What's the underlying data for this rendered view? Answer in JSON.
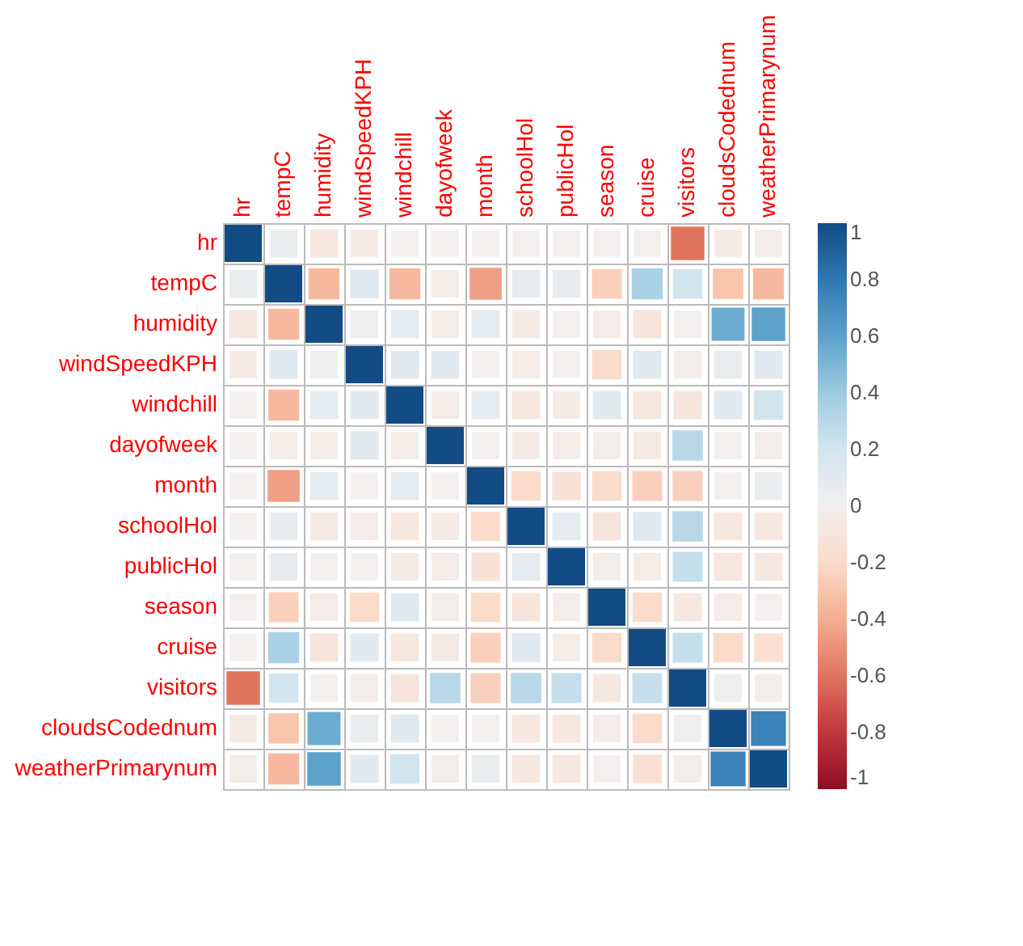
{
  "chart_data": {
    "type": "heatmap",
    "categories": [
      "hr",
      "tempC",
      "humidity",
      "windSpeedKPH",
      "windchill",
      "dayofweek",
      "month",
      "schoolHol",
      "publicHol",
      "season",
      "cruise",
      "visitors",
      "cloudsCodednum",
      "weatherPrimarynum"
    ],
    "y_categories": [
      "hr",
      "tempC",
      "humidity",
      "windSpeedKPH",
      "windchill",
      "dayofweek",
      "month",
      "schoolHol",
      "publicHol",
      "season",
      "cruise",
      "visitors",
      "cloudsCodednum",
      "weatherPrimarynum"
    ],
    "cells": [
      [
        1,
        0.05,
        -0.08,
        -0.04,
        0,
        0,
        0,
        0,
        0,
        0,
        0,
        -0.6,
        -0.04,
        -0.02
      ],
      [
        0.05,
        1,
        -0.35,
        0.12,
        -0.35,
        -0.02,
        -0.45,
        0.06,
        0.06,
        -0.25,
        0.35,
        0.2,
        -0.3,
        -0.35
      ],
      [
        -0.08,
        -0.35,
        1,
        0.02,
        0.08,
        -0.02,
        0.08,
        -0.05,
        0,
        -0.03,
        -0.1,
        0,
        0.55,
        0.6
      ],
      [
        -0.04,
        0.12,
        0.02,
        1,
        0.1,
        0.1,
        0,
        -0.03,
        0,
        -0.2,
        0.1,
        -0.02,
        0.05,
        0.1
      ],
      [
        0,
        -0.35,
        0.08,
        0.1,
        1,
        -0.03,
        0.08,
        -0.08,
        -0.04,
        0.1,
        -0.08,
        -0.1,
        0.1,
        0.2
      ],
      [
        0,
        -0.02,
        -0.02,
        0.1,
        -0.03,
        1,
        0,
        -0.04,
        -0.03,
        -0.02,
        -0.05,
        0.3,
        0,
        -0.02
      ],
      [
        0,
        -0.45,
        0.08,
        0,
        0.08,
        0,
        1,
        -0.2,
        -0.12,
        -0.2,
        -0.25,
        -0.25,
        0,
        0.05
      ],
      [
        0,
        0.06,
        -0.05,
        -0.03,
        -0.08,
        -0.04,
        -0.2,
        1,
        0.08,
        -0.1,
        0.12,
        0.3,
        -0.08,
        -0.08
      ],
      [
        0,
        0.06,
        0,
        0,
        -0.04,
        -0.03,
        -0.12,
        0.08,
        1,
        -0.02,
        -0.02,
        0.25,
        -0.08,
        -0.08
      ],
      [
        0,
        -0.25,
        -0.03,
        -0.2,
        0.1,
        -0.02,
        -0.2,
        -0.1,
        -0.02,
        1,
        -0.2,
        -0.08,
        -0.03,
        0
      ],
      [
        0,
        0.35,
        -0.1,
        0.1,
        -0.08,
        -0.05,
        -0.25,
        0.12,
        -0.02,
        -0.2,
        1,
        0.25,
        -0.2,
        -0.15
      ],
      [
        -0.6,
        0.2,
        0,
        -0.02,
        -0.1,
        0.3,
        -0.25,
        0.3,
        0.25,
        -0.08,
        0.25,
        1,
        0.02,
        -0.02
      ],
      [
        -0.04,
        -0.3,
        0.55,
        0.05,
        0.1,
        0,
        0,
        -0.08,
        -0.08,
        -0.03,
        -0.2,
        0.02,
        1,
        0.75
      ],
      [
        -0.02,
        -0.35,
        0.6,
        0.1,
        0.2,
        -0.02,
        0.05,
        -0.08,
        -0.08,
        0,
        -0.15,
        -0.02,
        0.75,
        1
      ]
    ],
    "clim": [
      -1,
      1
    ],
    "cticks": [
      -1,
      -0.8,
      -0.6,
      -0.4,
      -0.2,
      0,
      0.2,
      0.4,
      0.6,
      0.8,
      1
    ],
    "grid": true
  }
}
